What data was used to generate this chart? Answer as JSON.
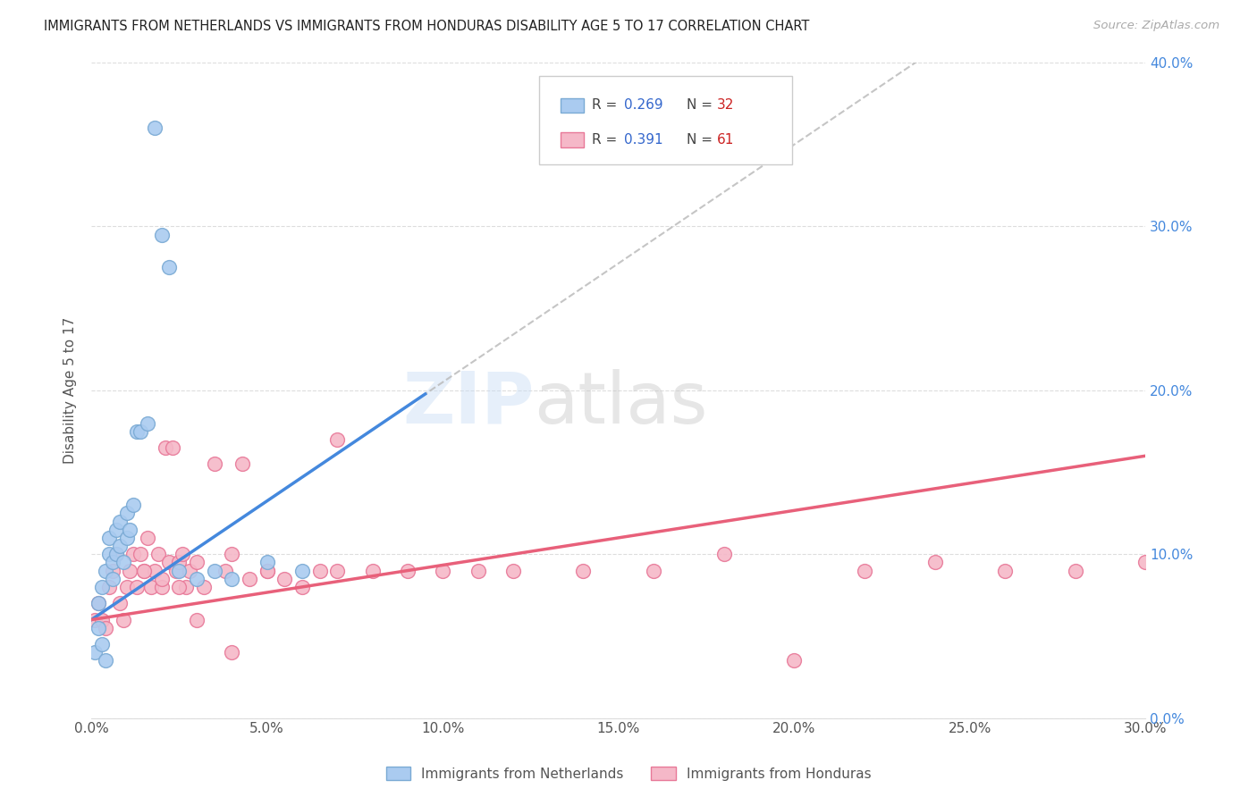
{
  "title": "IMMIGRANTS FROM NETHERLANDS VS IMMIGRANTS FROM HONDURAS DISABILITY AGE 5 TO 17 CORRELATION CHART",
  "source": "Source: ZipAtlas.com",
  "ylabel": "Disability Age 5 to 17",
  "x_tick_labels": [
    "0.0%",
    "5.0%",
    "10.0%",
    "15.0%",
    "20.0%",
    "25.0%",
    "30.0%"
  ],
  "y_tick_labels": [
    "0.0%",
    "10.0%",
    "20.0%",
    "30.0%",
    "40.0%"
  ],
  "xlim": [
    0.0,
    0.3
  ],
  "ylim": [
    0.0,
    0.4
  ],
  "legend_bottom": [
    "Immigrants from Netherlands",
    "Immigrants from Honduras"
  ],
  "blue_color": "#aacbf0",
  "blue_edge_color": "#7aaad4",
  "pink_color": "#f5b8c8",
  "pink_edge_color": "#e87898",
  "trend_blue": "#4488dd",
  "trend_pink": "#e8607a",
  "trend_dashed_color": "#bbbbbb",
  "netherlands_x": [
    0.001,
    0.002,
    0.002,
    0.003,
    0.003,
    0.004,
    0.004,
    0.005,
    0.005,
    0.006,
    0.006,
    0.007,
    0.007,
    0.008,
    0.008,
    0.009,
    0.01,
    0.01,
    0.011,
    0.012,
    0.013,
    0.014,
    0.016,
    0.018,
    0.02,
    0.022,
    0.025,
    0.03,
    0.035,
    0.04,
    0.05,
    0.06
  ],
  "netherlands_y": [
    0.04,
    0.055,
    0.07,
    0.045,
    0.08,
    0.035,
    0.09,
    0.1,
    0.11,
    0.095,
    0.085,
    0.1,
    0.115,
    0.105,
    0.12,
    0.095,
    0.125,
    0.11,
    0.115,
    0.13,
    0.175,
    0.175,
    0.18,
    0.36,
    0.295,
    0.275,
    0.09,
    0.085,
    0.09,
    0.085,
    0.095,
    0.09
  ],
  "honduras_x": [
    0.001,
    0.002,
    0.003,
    0.004,
    0.005,
    0.006,
    0.007,
    0.008,
    0.009,
    0.01,
    0.011,
    0.012,
    0.013,
    0.014,
    0.015,
    0.016,
    0.017,
    0.018,
    0.019,
    0.02,
    0.021,
    0.022,
    0.023,
    0.024,
    0.025,
    0.026,
    0.027,
    0.028,
    0.03,
    0.032,
    0.035,
    0.038,
    0.04,
    0.043,
    0.045,
    0.05,
    0.055,
    0.06,
    0.065,
    0.07,
    0.08,
    0.09,
    0.1,
    0.11,
    0.12,
    0.14,
    0.16,
    0.18,
    0.2,
    0.22,
    0.24,
    0.26,
    0.28,
    0.3,
    0.015,
    0.02,
    0.025,
    0.03,
    0.04,
    0.05,
    0.07
  ],
  "honduras_y": [
    0.06,
    0.07,
    0.06,
    0.055,
    0.08,
    0.09,
    0.1,
    0.07,
    0.06,
    0.08,
    0.09,
    0.1,
    0.08,
    0.1,
    0.09,
    0.11,
    0.08,
    0.09,
    0.1,
    0.08,
    0.165,
    0.095,
    0.165,
    0.09,
    0.095,
    0.1,
    0.08,
    0.09,
    0.06,
    0.08,
    0.155,
    0.09,
    0.1,
    0.155,
    0.085,
    0.09,
    0.085,
    0.08,
    0.09,
    0.17,
    0.09,
    0.09,
    0.09,
    0.09,
    0.09,
    0.09,
    0.09,
    0.1,
    0.035,
    0.09,
    0.095,
    0.09,
    0.09,
    0.095,
    0.09,
    0.085,
    0.08,
    0.095,
    0.04,
    0.09,
    0.09
  ],
  "blue_trend_x0": 0.0,
  "blue_trend_y0": 0.06,
  "blue_trend_x1": 0.1,
  "blue_trend_y1": 0.205,
  "pink_trend_x0": 0.0,
  "pink_trend_y0": 0.06,
  "pink_trend_x1": 0.3,
  "pink_trend_y1": 0.16
}
